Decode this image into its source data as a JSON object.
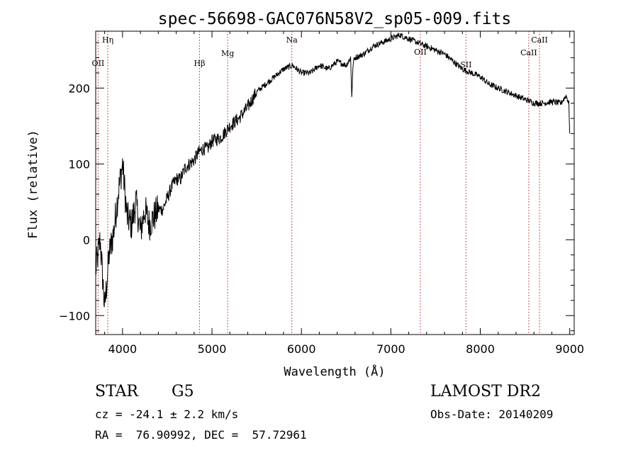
{
  "chart_data": {
    "type": "line",
    "title": "spec-56698-GAC076N58V2_sp05-009.fits",
    "xlabel": "Wavelength (Å)",
    "ylabel": "Flux (relative)",
    "xlim": [
      3700,
      9050
    ],
    "ylim": [
      -125,
      275
    ],
    "xticks": [
      4000,
      5000,
      6000,
      7000,
      8000,
      9000
    ],
    "yticks": [
      -100,
      0,
      100,
      200
    ],
    "grid": false,
    "line_color": "#000000",
    "marker_color": "#b22222",
    "series": [
      {
        "x": [
          3700,
          3750,
          3800,
          3850,
          3900,
          3950,
          4000,
          4050,
          4100,
          4150,
          4200,
          4250,
          4300,
          4350,
          4400,
          4450,
          4500,
          4550,
          4600,
          4650,
          4700,
          4750,
          4800,
          4850,
          4900,
          4950,
          5000,
          5100,
          5200,
          5300,
          5400,
          5500,
          5600,
          5700,
          5800,
          5900,
          6000,
          6100,
          6200,
          6300,
          6400,
          6500,
          6550,
          6563,
          6580,
          6600,
          6700,
          6800,
          6900,
          7000,
          7100,
          7200,
          7300,
          7400,
          7500,
          7600,
          7700,
          7800,
          7900,
          8000,
          8100,
          8200,
          8300,
          8400,
          8500,
          8550,
          8600,
          8700,
          8800,
          8900,
          8960,
          8990,
          9000
        ],
        "y": [
          -40,
          0,
          -90,
          -20,
          10,
          60,
          100,
          30,
          20,
          50,
          10,
          40,
          20,
          30,
          40,
          40,
          55,
          70,
          80,
          80,
          95,
          100,
          105,
          115,
          120,
          120,
          130,
          135,
          150,
          160,
          175,
          195,
          205,
          215,
          225,
          230,
          220,
          220,
          230,
          225,
          235,
          230,
          240,
          190,
          235,
          240,
          245,
          255,
          260,
          265,
          270,
          265,
          260,
          255,
          250,
          245,
          235,
          225,
          220,
          215,
          205,
          200,
          195,
          190,
          185,
          183,
          180,
          180,
          182,
          180,
          190,
          180,
          140
        ]
      }
    ],
    "lines": [
      {
        "label": "Hη",
        "x": 3835
      },
      {
        "label": "OII",
        "x": 3727
      },
      {
        "label": "Hβ",
        "x": 4861
      },
      {
        "label": "Mg",
        "x": 5175
      },
      {
        "label": "Na",
        "x": 5893
      },
      {
        "label": "OII",
        "x": 7330
      },
      {
        "label": "SII",
        "x": 7840
      },
      {
        "label": "CaII",
        "x": 8542
      },
      {
        "label": "CaII",
        "x": 8662
      }
    ]
  },
  "info": {
    "object": "STAR",
    "subclass": "G5",
    "survey": "LAMOST DR2",
    "cz": "cz = -24.1 ± 2.2 km/s",
    "obs_date": "Obs-Date: 20140209",
    "coords": "RA =  76.90992, DEC =  57.72961"
  }
}
